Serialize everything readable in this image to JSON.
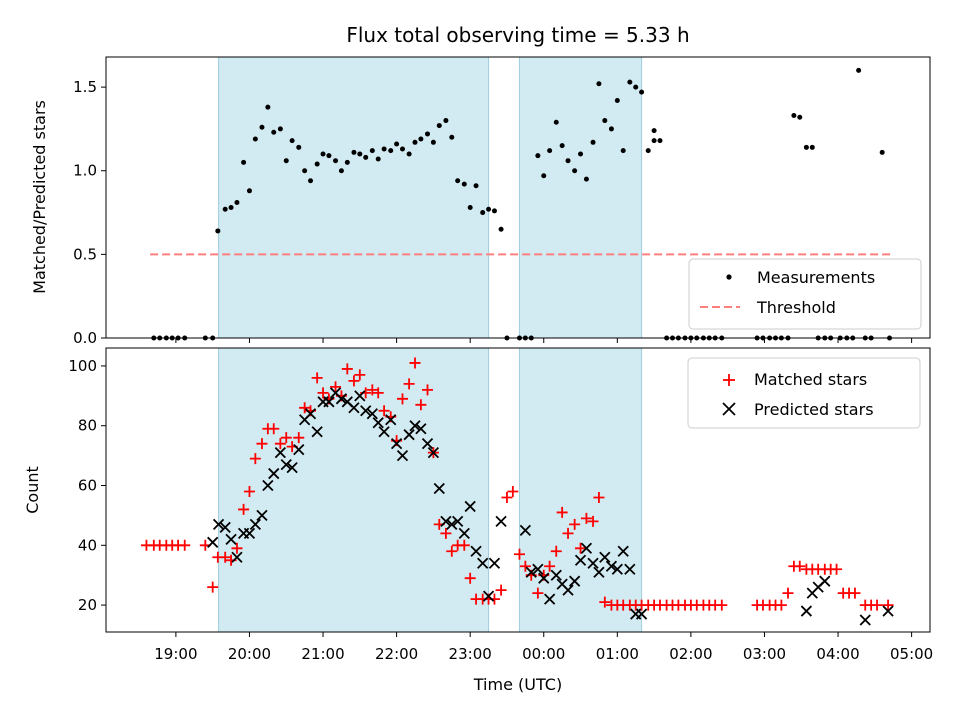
{
  "chart_data": [
    {
      "type": "scatter",
      "title": "Flux total observing time = 5.33 h",
      "xlabel": "",
      "ylabel": "Matched/Predicted stars",
      "ylim": [
        0,
        1.68
      ],
      "xlim_hours": [
        18.05,
        29.25
      ],
      "yticks": [
        0.0,
        0.5,
        1.0,
        1.5
      ],
      "yticklabels": [
        "0.0",
        "0.5",
        "1.0",
        "1.5"
      ],
      "legend": [
        "Measurements",
        "Threshold"
      ],
      "legend_loc": "lower right",
      "threshold": 0.5,
      "threshold_range_hours": [
        18.65,
        28.75
      ],
      "shaded_hours": [
        [
          19.58,
          23.25
        ],
        [
          23.67,
          25.33
        ]
      ],
      "colors": {
        "shade": "#add8e6",
        "measure": "#000000",
        "threshold": "#ff7f7f"
      },
      "x_hours": [
        18.7,
        18.78,
        18.87,
        18.95,
        19.03,
        19.12,
        19.4,
        19.5,
        19.57,
        19.67,
        19.75,
        19.83,
        19.92,
        20.0,
        20.08,
        20.17,
        20.25,
        20.33,
        20.42,
        20.5,
        20.58,
        20.67,
        20.75,
        20.83,
        20.92,
        21.0,
        21.08,
        21.17,
        21.25,
        21.33,
        21.42,
        21.5,
        21.58,
        21.67,
        21.75,
        21.83,
        21.92,
        22.0,
        22.08,
        22.17,
        22.25,
        22.33,
        22.42,
        22.5,
        22.58,
        22.67,
        22.75,
        22.83,
        22.92,
        23.0,
        23.08,
        23.17,
        23.25,
        23.33,
        23.42,
        23.5,
        23.67,
        23.75,
        23.83,
        23.92,
        24.0,
        24.08,
        24.17,
        24.25,
        24.33,
        24.42,
        24.5,
        24.58,
        24.67,
        24.75,
        24.83,
        24.92,
        25.0,
        25.08,
        25.17,
        25.25,
        25.33,
        25.42,
        25.5,
        25.58,
        25.67,
        25.75,
        25.83,
        25.92,
        26.0,
        26.08,
        26.17,
        26.25,
        26.33,
        26.42,
        26.9,
        26.98,
        27.07,
        27.15,
        27.23,
        27.32,
        27.4,
        27.48,
        27.57,
        27.65,
        27.73,
        27.82,
        27.9,
        28.03,
        28.12,
        28.2,
        28.28,
        28.37,
        28.45,
        28.6,
        28.7
      ],
      "y": [
        0,
        0,
        0,
        0,
        0,
        0,
        0,
        0,
        0.64,
        0.77,
        0.78,
        0.81,
        1.05,
        0.88,
        1.19,
        1.26,
        1.38,
        1.23,
        1.25,
        1.06,
        1.18,
        1.14,
        1.0,
        0.94,
        1.04,
        1.1,
        1.09,
        1.06,
        1.0,
        1.05,
        1.11,
        1.1,
        1.08,
        1.12,
        1.07,
        1.13,
        1.12,
        1.16,
        1.13,
        1.1,
        1.17,
        1.19,
        1.22,
        1.17,
        1.27,
        1.3,
        1.2,
        0.94,
        0.92,
        0.78,
        0.91,
        0.75,
        0.77,
        0.76,
        0.65,
        0,
        0,
        0,
        0,
        1.09,
        0.97,
        1.12,
        1.29,
        1.15,
        1.06,
        1.0,
        1.1,
        0.95,
        1.17,
        1.52,
        1.3,
        1.25,
        1.42,
        1.12,
        1.53,
        1.5,
        1.47,
        1.12,
        1.24,
        1.18,
        0,
        0,
        0,
        0,
        0,
        0,
        0,
        0,
        0,
        0,
        0,
        0,
        0,
        0,
        0,
        0,
        1.33,
        1.32,
        1.14,
        1.14,
        0,
        0,
        0,
        0,
        0,
        0,
        1.6,
        0,
        0,
        1.11,
        0
      ],
      "extra_points": [
        {
          "x_hours": 25.5,
          "y": 1.18
        }
      ]
    },
    {
      "type": "scatter",
      "title": "",
      "xlabel": "Time (UTC)",
      "ylabel": "Count",
      "ylim": [
        11,
        106
      ],
      "xlim_hours": [
        18.05,
        29.25
      ],
      "yticks": [
        20,
        40,
        60,
        80,
        100
      ],
      "yticklabels": [
        "20",
        "40",
        "60",
        "80",
        "100"
      ],
      "xticks_hours": [
        19,
        20,
        21,
        22,
        23,
        24,
        25,
        26,
        27,
        28,
        29
      ],
      "xticklabels": [
        "19:00",
        "20:00",
        "21:00",
        "22:00",
        "23:00",
        "00:00",
        "01:00",
        "02:00",
        "03:00",
        "04:00",
        "05:00"
      ],
      "legend": [
        "Matched stars",
        "Predicted stars"
      ],
      "legend_loc": "upper right",
      "colors": {
        "matched": "#ff0000",
        "predicted": "#000000"
      },
      "series": [
        {
          "name": "Matched stars",
          "x_hours": [
            18.6,
            18.7,
            18.78,
            18.87,
            18.95,
            19.03,
            19.12,
            19.4,
            19.5,
            19.57,
            19.67,
            19.75,
            19.83,
            19.92,
            20.0,
            20.08,
            20.17,
            20.25,
            20.33,
            20.42,
            20.5,
            20.58,
            20.67,
            20.75,
            20.83,
            20.92,
            21.0,
            21.08,
            21.17,
            21.25,
            21.33,
            21.42,
            21.5,
            21.58,
            21.67,
            21.75,
            21.83,
            21.92,
            22.0,
            22.08,
            22.17,
            22.25,
            22.33,
            22.42,
            22.5,
            22.58,
            22.67,
            22.75,
            22.83,
            22.92,
            23.0,
            23.08,
            23.17,
            23.25,
            23.33,
            23.42,
            23.5,
            23.58,
            23.67,
            23.75,
            23.83,
            23.92,
            24.0,
            24.08,
            24.17,
            24.25,
            24.33,
            24.42,
            24.5,
            24.58,
            24.67,
            24.75,
            24.83,
            24.92,
            25.0,
            25.08,
            25.17,
            25.25,
            25.33,
            25.42,
            25.5,
            25.58,
            25.67,
            25.75,
            25.83,
            25.92,
            26.0,
            26.08,
            26.17,
            26.25,
            26.33,
            26.42,
            26.9,
            26.98,
            27.07,
            27.15,
            27.23,
            27.32,
            27.4,
            27.48,
            27.57,
            27.65,
            27.73,
            27.82,
            27.9,
            27.98,
            28.07,
            28.15,
            28.23,
            28.37,
            28.45,
            28.53,
            28.68
          ],
          "y": [
            40,
            40,
            40,
            40,
            40,
            40,
            40,
            40,
            26,
            36,
            36,
            35,
            39,
            52,
            58,
            69,
            74,
            79,
            79,
            74,
            76,
            73,
            76,
            86,
            85,
            96,
            91,
            89,
            93,
            90,
            99,
            95,
            97,
            91,
            92,
            91,
            85,
            83,
            75,
            89,
            94,
            101,
            87,
            92,
            71,
            47,
            44,
            38,
            40,
            40,
            29,
            22,
            22,
            22,
            22,
            25,
            56,
            58,
            37,
            33,
            30,
            24,
            30,
            33,
            38,
            51,
            44,
            47,
            39,
            49,
            48,
            56,
            21,
            20,
            20,
            20,
            20,
            20,
            20,
            20,
            20,
            20,
            20,
            20,
            20,
            20,
            20,
            20,
            20,
            20,
            20,
            20,
            20,
            20,
            20,
            20,
            20,
            24,
            33,
            33,
            32,
            32,
            32,
            32,
            32,
            32,
            24,
            24,
            24,
            20,
            20,
            20,
            20
          ]
        },
        {
          "name": "Predicted stars",
          "x_hours": [
            19.5,
            19.58,
            19.67,
            19.75,
            19.83,
            19.92,
            20.0,
            20.08,
            20.17,
            20.25,
            20.33,
            20.42,
            20.5,
            20.58,
            20.67,
            20.75,
            20.83,
            20.92,
            21.0,
            21.08,
            21.17,
            21.25,
            21.33,
            21.42,
            21.5,
            21.58,
            21.67,
            21.75,
            21.83,
            21.92,
            22.0,
            22.08,
            22.17,
            22.25,
            22.33,
            22.42,
            22.5,
            22.58,
            22.67,
            22.75,
            22.83,
            22.92,
            23.0,
            23.08,
            23.17,
            23.25,
            23.33,
            23.42,
            23.75,
            23.83,
            23.92,
            24.0,
            24.08,
            24.17,
            24.25,
            24.33,
            24.42,
            24.5,
            24.58,
            24.67,
            24.75,
            24.83,
            24.92,
            25.0,
            25.08,
            25.17,
            25.25,
            25.33,
            27.57,
            27.65,
            27.73,
            27.82,
            28.37,
            28.68
          ],
          "y": [
            41,
            47,
            46,
            42,
            36,
            44,
            44,
            47,
            50,
            60,
            64,
            71,
            67,
            66,
            72,
            82,
            84,
            78,
            88,
            88,
            91,
            89,
            88,
            86,
            90,
            85,
            84,
            81,
            78,
            82,
            74,
            70,
            77,
            80,
            79,
            74,
            71,
            59,
            48,
            47,
            48,
            44,
            53,
            38,
            34,
            23,
            34,
            48,
            45,
            31,
            32,
            29,
            22,
            30,
            27,
            25,
            28,
            35,
            39,
            34,
            31,
            36,
            33,
            32,
            38,
            32,
            17,
            17,
            18,
            24,
            26,
            28,
            15,
            18
          ]
        }
      ]
    }
  ]
}
